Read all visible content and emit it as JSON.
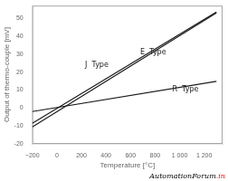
{
  "chart_data": {
    "type": "line",
    "xlabel": "Temperature [°C]",
    "ylabel": "Output of thermo-couple [mV]",
    "xlim": [
      -200,
      1350
    ],
    "ylim": [
      -20,
      57
    ],
    "xticks": [
      {
        "value": -200,
        "label": "−200"
      },
      0,
      200,
      400,
      600,
      800,
      {
        "value": 1000,
        "label": "1 000"
      },
      {
        "value": 1200,
        "label": "1 200"
      }
    ],
    "yticks": [
      -20,
      -10,
      0,
      10,
      20,
      30,
      40,
      50
    ],
    "grid": false,
    "series": [
      {
        "color": "#1a1a1a",
        "x": [
          -200,
          1300
        ],
        "values": [
          -10.5,
          53
        ]
      },
      {
        "color": "#1a1a1a",
        "x": [
          -200,
          1300
        ],
        "values": [
          -8.5,
          53.5
        ]
      },
      {
        "color": "#1a1a1a",
        "x": [
          -200,
          1300
        ],
        "values": [
          -2.0,
          14.8
        ]
      }
    ],
    "annotations": [
      {
        "text": "J  Type",
        "x": 230,
        "y": 22
      },
      {
        "text": "E  Type",
        "x": 680,
        "y": 29
      },
      {
        "text": "R  Type",
        "x": 940,
        "y": 8.5
      },
      {
        "text": "AutomationForum"
      },
      {
        "text": ".in",
        "color": "red"
      }
    ]
  }
}
